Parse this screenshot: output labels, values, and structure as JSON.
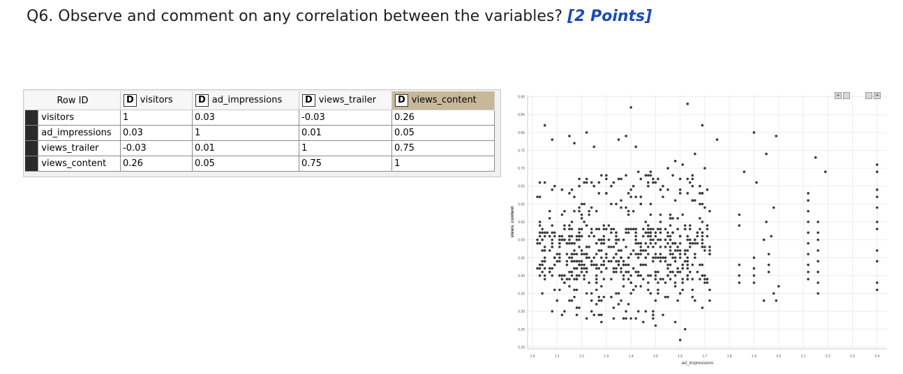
{
  "question": {
    "text": "Q6. Observe and comment on any correlation between the variables?",
    "points": "[2 Points]"
  },
  "table": {
    "type_badge": "D",
    "row_id_header": "Row ID",
    "columns": [
      "visitors",
      "ad_impressions",
      "views_trailer",
      "views_content"
    ],
    "selected_column": "views_content",
    "rows": [
      {
        "name": "visitors",
        "values": [
          "1",
          "0.03",
          "-0.03",
          "0.26"
        ]
      },
      {
        "name": "ad_impressions",
        "values": [
          "0.03",
          "1",
          "0.01",
          "0.05"
        ]
      },
      {
        "name": "views_trailer",
        "values": [
          "-0.03",
          "0.01",
          "1",
          "0.75"
        ]
      },
      {
        "name": "views_content",
        "values": [
          "0.26",
          "0.05",
          "0.75",
          "1"
        ]
      }
    ]
  },
  "chart_data": {
    "type": "scatter",
    "title": "",
    "xlabel": "ad_impressions",
    "ylabel": "views_content",
    "xlim": [
      0.98,
      2.44
    ],
    "ylim": [
      0.195,
      0.905
    ],
    "x_ticks": [
      "1.0",
      "1.1",
      "1.2",
      "1.3",
      "1.4",
      "1.5",
      "1.6",
      "1.7",
      "1.8",
      "1.9",
      "2.0",
      "2.1",
      "2.2",
      "2.3",
      "2.4"
    ],
    "y_ticks": [
      "0.20",
      "0.25",
      "0.30",
      "0.35",
      "0.40",
      "0.45",
      "0.50",
      "0.55",
      "0.60",
      "0.65",
      "0.70",
      "0.75",
      "0.80",
      "0.85",
      "0.90"
    ],
    "grid": true,
    "point_color": "#3a3a3a",
    "points": [
      [
        1.05,
        0.82
      ],
      [
        1.08,
        0.78
      ],
      [
        1.15,
        0.79
      ],
      [
        1.17,
        0.77
      ],
      [
        1.22,
        0.8
      ],
      [
        1.25,
        0.76
      ],
      [
        1.35,
        0.78
      ],
      [
        1.38,
        0.79
      ],
      [
        1.42,
        0.76
      ],
      [
        1.4,
        0.87
      ],
      [
        1.63,
        0.88
      ],
      [
        1.69,
        0.82
      ],
      [
        1.66,
        0.74
      ],
      [
        1.75,
        0.78
      ],
      [
        1.9,
        0.8
      ],
      [
        1.99,
        0.79
      ],
      [
        1.95,
        0.74
      ],
      [
        2.15,
        0.73
      ],
      [
        2.19,
        0.69
      ],
      [
        1.03,
        0.55
      ],
      [
        1.03,
        0.52
      ],
      [
        1.05,
        0.48
      ],
      [
        1.05,
        0.44
      ],
      [
        1.07,
        0.41
      ],
      [
        1.03,
        0.4
      ],
      [
        1.1,
        0.33
      ],
      [
        1.12,
        0.29
      ],
      [
        1.08,
        0.3
      ],
      [
        1.15,
        0.37
      ],
      [
        1.18,
        0.31
      ],
      [
        1.22,
        0.28
      ],
      [
        1.25,
        0.29
      ],
      [
        1.28,
        0.27
      ],
      [
        1.32,
        0.34
      ],
      [
        1.35,
        0.32
      ],
      [
        1.38,
        0.3
      ],
      [
        1.42,
        0.28
      ],
      [
        1.46,
        0.3
      ],
      [
        1.5,
        0.26
      ],
      [
        1.53,
        0.29
      ],
      [
        1.58,
        0.27
      ],
      [
        1.62,
        0.25
      ],
      [
        1.6,
        0.22
      ],
      [
        1.66,
        0.33
      ],
      [
        1.69,
        0.31
      ],
      [
        1.3,
        0.63
      ],
      [
        1.36,
        0.61
      ],
      [
        1.33,
        0.66
      ],
      [
        1.41,
        0.65
      ],
      [
        1.44,
        0.62
      ],
      [
        1.47,
        0.68
      ],
      [
        1.48,
        0.69
      ],
      [
        1.55,
        0.7
      ],
      [
        1.58,
        0.72
      ],
      [
        1.61,
        0.71
      ],
      [
        1.65,
        0.67
      ],
      [
        1.68,
        0.65
      ],
      [
        1.7,
        0.7
      ],
      [
        1.72,
        0.58
      ],
      [
        1.84,
        0.57
      ],
      [
        1.84,
        0.54
      ],
      [
        1.86,
        0.69
      ],
      [
        1.91,
        0.66
      ],
      [
        1.95,
        0.55
      ],
      [
        1.98,
        0.59
      ],
      [
        1.97,
        0.51
      ],
      [
        1.94,
        0.5
      ],
      [
        1.98,
        0.35
      ],
      [
        2.0,
        0.37
      ],
      [
        1.9,
        0.45
      ],
      [
        1.9,
        0.42
      ],
      [
        1.9,
        0.4
      ],
      [
        1.9,
        0.38
      ],
      [
        1.84,
        0.43
      ],
      [
        1.84,
        0.4
      ],
      [
        1.84,
        0.38
      ],
      [
        1.96,
        0.46
      ],
      [
        1.96,
        0.43
      ],
      [
        1.96,
        0.41
      ],
      [
        1.94,
        0.33
      ],
      [
        1.99,
        0.33
      ],
      [
        2.12,
        0.63
      ],
      [
        2.12,
        0.61
      ],
      [
        2.12,
        0.58
      ],
      [
        2.12,
        0.55
      ],
      [
        2.12,
        0.52
      ],
      [
        2.12,
        0.49
      ],
      [
        2.12,
        0.46
      ],
      [
        2.12,
        0.43
      ],
      [
        2.12,
        0.41
      ],
      [
        2.12,
        0.39
      ],
      [
        2.16,
        0.55
      ],
      [
        2.16,
        0.52
      ],
      [
        2.16,
        0.5
      ],
      [
        2.16,
        0.47
      ],
      [
        2.16,
        0.44
      ],
      [
        2.16,
        0.41
      ],
      [
        2.16,
        0.38
      ],
      [
        2.16,
        0.35
      ],
      [
        2.4,
        0.71
      ],
      [
        2.4,
        0.69
      ],
      [
        2.4,
        0.64
      ],
      [
        2.4,
        0.62
      ],
      [
        2.4,
        0.59
      ],
      [
        2.4,
        0.55
      ],
      [
        2.4,
        0.53
      ],
      [
        2.4,
        0.47
      ],
      [
        2.4,
        0.44
      ],
      [
        2.4,
        0.38
      ],
      [
        2.4,
        0.36
      ]
    ],
    "cluster_density": [
      {
        "x": [
          1.02,
          1.12
        ],
        "y": [
          0.34,
          0.67
        ],
        "n": 70
      },
      {
        "x": [
          1.12,
          1.28
        ],
        "y": [
          0.28,
          0.68
        ],
        "n": 170
      },
      {
        "x": [
          1.28,
          1.5
        ],
        "y": [
          0.27,
          0.69
        ],
        "n": 200
      },
      {
        "x": [
          1.5,
          1.72
        ],
        "y": [
          0.3,
          0.69
        ],
        "n": 190
      }
    ]
  }
}
